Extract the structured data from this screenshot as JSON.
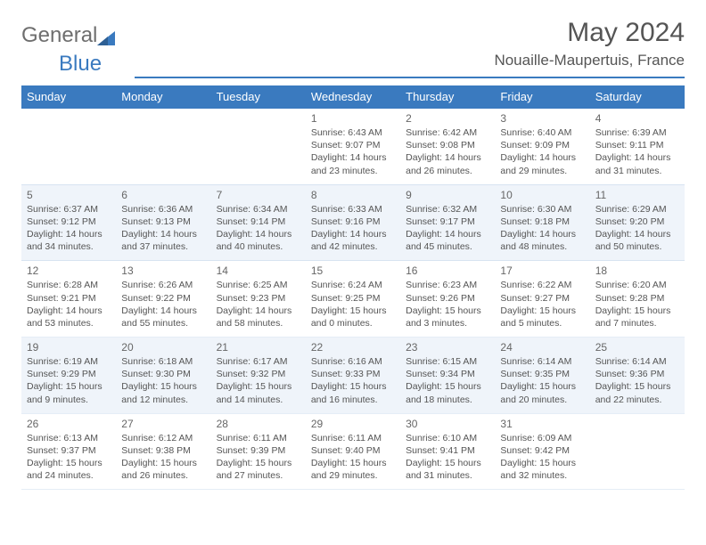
{
  "brand": {
    "gray": "General",
    "blue": "Blue"
  },
  "title": "May 2024",
  "location": "Nouaille-Maupertuis, France",
  "colors": {
    "accent": "#3a7abf",
    "text": "#555555",
    "altRow": "#eff4fa",
    "bg": "#ffffff"
  },
  "day_headers": [
    "Sunday",
    "Monday",
    "Tuesday",
    "Wednesday",
    "Thursday",
    "Friday",
    "Saturday"
  ],
  "weeks": [
    {
      "alt": false,
      "cells": [
        null,
        null,
        null,
        {
          "n": "1",
          "sr": "6:43 AM",
          "ss": "9:07 PM",
          "dl": "14 hours and 23 minutes."
        },
        {
          "n": "2",
          "sr": "6:42 AM",
          "ss": "9:08 PM",
          "dl": "14 hours and 26 minutes."
        },
        {
          "n": "3",
          "sr": "6:40 AM",
          "ss": "9:09 PM",
          "dl": "14 hours and 29 minutes."
        },
        {
          "n": "4",
          "sr": "6:39 AM",
          "ss": "9:11 PM",
          "dl": "14 hours and 31 minutes."
        }
      ]
    },
    {
      "alt": true,
      "cells": [
        {
          "n": "5",
          "sr": "6:37 AM",
          "ss": "9:12 PM",
          "dl": "14 hours and 34 minutes."
        },
        {
          "n": "6",
          "sr": "6:36 AM",
          "ss": "9:13 PM",
          "dl": "14 hours and 37 minutes."
        },
        {
          "n": "7",
          "sr": "6:34 AM",
          "ss": "9:14 PM",
          "dl": "14 hours and 40 minutes."
        },
        {
          "n": "8",
          "sr": "6:33 AM",
          "ss": "9:16 PM",
          "dl": "14 hours and 42 minutes."
        },
        {
          "n": "9",
          "sr": "6:32 AM",
          "ss": "9:17 PM",
          "dl": "14 hours and 45 minutes."
        },
        {
          "n": "10",
          "sr": "6:30 AM",
          "ss": "9:18 PM",
          "dl": "14 hours and 48 minutes."
        },
        {
          "n": "11",
          "sr": "6:29 AM",
          "ss": "9:20 PM",
          "dl": "14 hours and 50 minutes."
        }
      ]
    },
    {
      "alt": false,
      "cells": [
        {
          "n": "12",
          "sr": "6:28 AM",
          "ss": "9:21 PM",
          "dl": "14 hours and 53 minutes."
        },
        {
          "n": "13",
          "sr": "6:26 AM",
          "ss": "9:22 PM",
          "dl": "14 hours and 55 minutes."
        },
        {
          "n": "14",
          "sr": "6:25 AM",
          "ss": "9:23 PM",
          "dl": "14 hours and 58 minutes."
        },
        {
          "n": "15",
          "sr": "6:24 AM",
          "ss": "9:25 PM",
          "dl": "15 hours and 0 minutes."
        },
        {
          "n": "16",
          "sr": "6:23 AM",
          "ss": "9:26 PM",
          "dl": "15 hours and 3 minutes."
        },
        {
          "n": "17",
          "sr": "6:22 AM",
          "ss": "9:27 PM",
          "dl": "15 hours and 5 minutes."
        },
        {
          "n": "18",
          "sr": "6:20 AM",
          "ss": "9:28 PM",
          "dl": "15 hours and 7 minutes."
        }
      ]
    },
    {
      "alt": true,
      "cells": [
        {
          "n": "19",
          "sr": "6:19 AM",
          "ss": "9:29 PM",
          "dl": "15 hours and 9 minutes."
        },
        {
          "n": "20",
          "sr": "6:18 AM",
          "ss": "9:30 PM",
          "dl": "15 hours and 12 minutes."
        },
        {
          "n": "21",
          "sr": "6:17 AM",
          "ss": "9:32 PM",
          "dl": "15 hours and 14 minutes."
        },
        {
          "n": "22",
          "sr": "6:16 AM",
          "ss": "9:33 PM",
          "dl": "15 hours and 16 minutes."
        },
        {
          "n": "23",
          "sr": "6:15 AM",
          "ss": "9:34 PM",
          "dl": "15 hours and 18 minutes."
        },
        {
          "n": "24",
          "sr": "6:14 AM",
          "ss": "9:35 PM",
          "dl": "15 hours and 20 minutes."
        },
        {
          "n": "25",
          "sr": "6:14 AM",
          "ss": "9:36 PM",
          "dl": "15 hours and 22 minutes."
        }
      ]
    },
    {
      "alt": false,
      "cells": [
        {
          "n": "26",
          "sr": "6:13 AM",
          "ss": "9:37 PM",
          "dl": "15 hours and 24 minutes."
        },
        {
          "n": "27",
          "sr": "6:12 AM",
          "ss": "9:38 PM",
          "dl": "15 hours and 26 minutes."
        },
        {
          "n": "28",
          "sr": "6:11 AM",
          "ss": "9:39 PM",
          "dl": "15 hours and 27 minutes."
        },
        {
          "n": "29",
          "sr": "6:11 AM",
          "ss": "9:40 PM",
          "dl": "15 hours and 29 minutes."
        },
        {
          "n": "30",
          "sr": "6:10 AM",
          "ss": "9:41 PM",
          "dl": "15 hours and 31 minutes."
        },
        {
          "n": "31",
          "sr": "6:09 AM",
          "ss": "9:42 PM",
          "dl": "15 hours and 32 minutes."
        },
        null
      ]
    }
  ],
  "labels": {
    "sunrise": "Sunrise:",
    "sunset": "Sunset:",
    "daylight": "Daylight:"
  }
}
